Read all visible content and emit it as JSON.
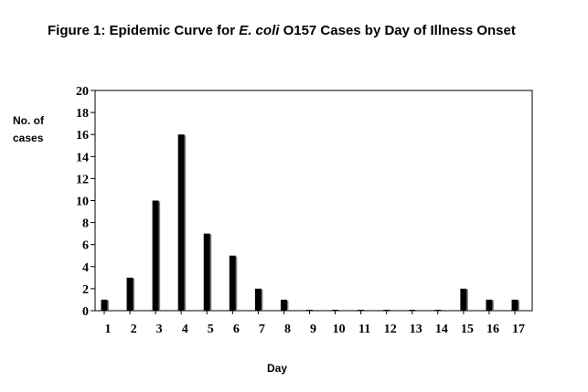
{
  "chart_data": {
    "type": "bar",
    "title": {
      "prefix": "Figure 1: Epidemic Curve for ",
      "italic": "E. coli",
      "suffix": " O157 Cases by Day of Illness Onset"
    },
    "ylabel_lines": [
      "No. of",
      "cases"
    ],
    "xlabel": "Day",
    "categories": [
      "1",
      "2",
      "3",
      "4",
      "5",
      "6",
      "7",
      "8",
      "9",
      "10",
      "11",
      "12",
      "13",
      "14",
      "15",
      "16",
      "17"
    ],
    "values": [
      1,
      3,
      10,
      16,
      7,
      5,
      2,
      1,
      0,
      0,
      0,
      0,
      0,
      0,
      2,
      1,
      1
    ],
    "ylim": [
      0,
      20
    ],
    "yticks": [
      "0",
      "2",
      "4",
      "6",
      "8",
      "10",
      "12",
      "14",
      "16",
      "18",
      "20"
    ],
    "grid": false,
    "legend": "none",
    "colors": {
      "bar": "#000000",
      "bar_shadow": "#7f7f7f",
      "frame": "#000000"
    }
  }
}
